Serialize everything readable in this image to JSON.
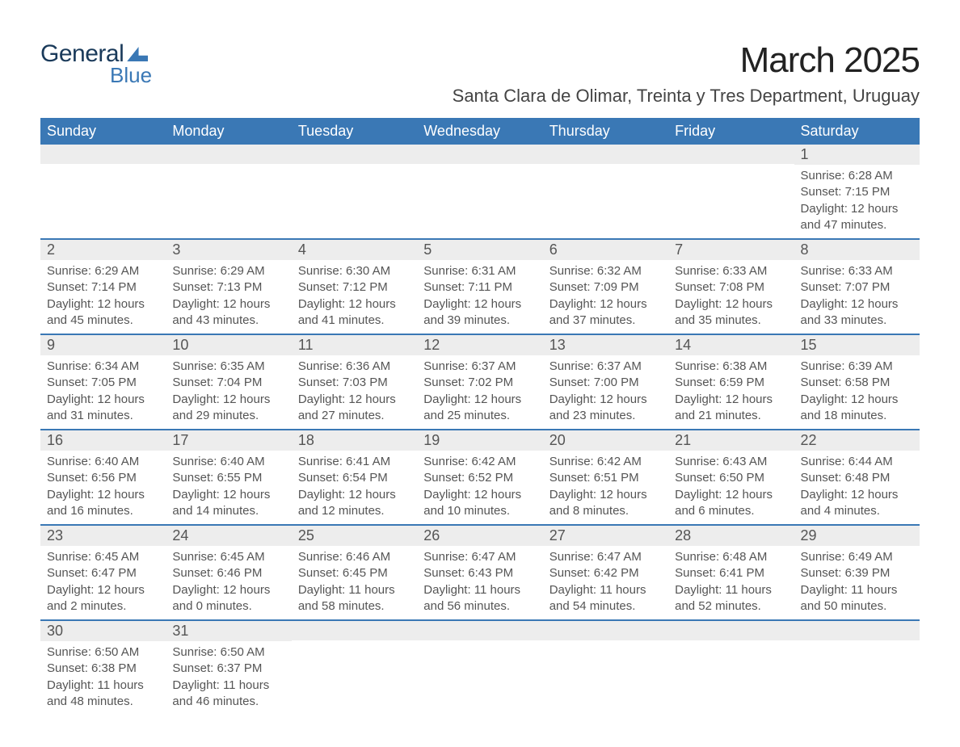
{
  "logo": {
    "word1": "General",
    "word2": "Blue"
  },
  "title": "March 2025",
  "location": "Santa Clara de Olimar, Treinta y Tres Department, Uruguay",
  "colors": {
    "header_bg": "#3a78b5",
    "header_fg": "#ffffff",
    "daynum_bg": "#ededed",
    "border": "#3a78b5",
    "text": "#555555",
    "logo_dark": "#1a3a5a",
    "logo_blue": "#3a78b5"
  },
  "font": {
    "family": "Arial",
    "title_size_pt": 33,
    "location_size_pt": 16,
    "header_size_pt": 13,
    "body_size_pt": 11
  },
  "week_header": [
    "Sunday",
    "Monday",
    "Tuesday",
    "Wednesday",
    "Thursday",
    "Friday",
    "Saturday"
  ],
  "weeks": [
    [
      null,
      null,
      null,
      null,
      null,
      null,
      {
        "n": "1",
        "sunrise": "Sunrise: 6:28 AM",
        "sunset": "Sunset: 7:15 PM",
        "daylight": "Daylight: 12 hours and 47 minutes."
      }
    ],
    [
      {
        "n": "2",
        "sunrise": "Sunrise: 6:29 AM",
        "sunset": "Sunset: 7:14 PM",
        "daylight": "Daylight: 12 hours and 45 minutes."
      },
      {
        "n": "3",
        "sunrise": "Sunrise: 6:29 AM",
        "sunset": "Sunset: 7:13 PM",
        "daylight": "Daylight: 12 hours and 43 minutes."
      },
      {
        "n": "4",
        "sunrise": "Sunrise: 6:30 AM",
        "sunset": "Sunset: 7:12 PM",
        "daylight": "Daylight: 12 hours and 41 minutes."
      },
      {
        "n": "5",
        "sunrise": "Sunrise: 6:31 AM",
        "sunset": "Sunset: 7:11 PM",
        "daylight": "Daylight: 12 hours and 39 minutes."
      },
      {
        "n": "6",
        "sunrise": "Sunrise: 6:32 AM",
        "sunset": "Sunset: 7:09 PM",
        "daylight": "Daylight: 12 hours and 37 minutes."
      },
      {
        "n": "7",
        "sunrise": "Sunrise: 6:33 AM",
        "sunset": "Sunset: 7:08 PM",
        "daylight": "Daylight: 12 hours and 35 minutes."
      },
      {
        "n": "8",
        "sunrise": "Sunrise: 6:33 AM",
        "sunset": "Sunset: 7:07 PM",
        "daylight": "Daylight: 12 hours and 33 minutes."
      }
    ],
    [
      {
        "n": "9",
        "sunrise": "Sunrise: 6:34 AM",
        "sunset": "Sunset: 7:05 PM",
        "daylight": "Daylight: 12 hours and 31 minutes."
      },
      {
        "n": "10",
        "sunrise": "Sunrise: 6:35 AM",
        "sunset": "Sunset: 7:04 PM",
        "daylight": "Daylight: 12 hours and 29 minutes."
      },
      {
        "n": "11",
        "sunrise": "Sunrise: 6:36 AM",
        "sunset": "Sunset: 7:03 PM",
        "daylight": "Daylight: 12 hours and 27 minutes."
      },
      {
        "n": "12",
        "sunrise": "Sunrise: 6:37 AM",
        "sunset": "Sunset: 7:02 PM",
        "daylight": "Daylight: 12 hours and 25 minutes."
      },
      {
        "n": "13",
        "sunrise": "Sunrise: 6:37 AM",
        "sunset": "Sunset: 7:00 PM",
        "daylight": "Daylight: 12 hours and 23 minutes."
      },
      {
        "n": "14",
        "sunrise": "Sunrise: 6:38 AM",
        "sunset": "Sunset: 6:59 PM",
        "daylight": "Daylight: 12 hours and 21 minutes."
      },
      {
        "n": "15",
        "sunrise": "Sunrise: 6:39 AM",
        "sunset": "Sunset: 6:58 PM",
        "daylight": "Daylight: 12 hours and 18 minutes."
      }
    ],
    [
      {
        "n": "16",
        "sunrise": "Sunrise: 6:40 AM",
        "sunset": "Sunset: 6:56 PM",
        "daylight": "Daylight: 12 hours and 16 minutes."
      },
      {
        "n": "17",
        "sunrise": "Sunrise: 6:40 AM",
        "sunset": "Sunset: 6:55 PM",
        "daylight": "Daylight: 12 hours and 14 minutes."
      },
      {
        "n": "18",
        "sunrise": "Sunrise: 6:41 AM",
        "sunset": "Sunset: 6:54 PM",
        "daylight": "Daylight: 12 hours and 12 minutes."
      },
      {
        "n": "19",
        "sunrise": "Sunrise: 6:42 AM",
        "sunset": "Sunset: 6:52 PM",
        "daylight": "Daylight: 12 hours and 10 minutes."
      },
      {
        "n": "20",
        "sunrise": "Sunrise: 6:42 AM",
        "sunset": "Sunset: 6:51 PM",
        "daylight": "Daylight: 12 hours and 8 minutes."
      },
      {
        "n": "21",
        "sunrise": "Sunrise: 6:43 AM",
        "sunset": "Sunset: 6:50 PM",
        "daylight": "Daylight: 12 hours and 6 minutes."
      },
      {
        "n": "22",
        "sunrise": "Sunrise: 6:44 AM",
        "sunset": "Sunset: 6:48 PM",
        "daylight": "Daylight: 12 hours and 4 minutes."
      }
    ],
    [
      {
        "n": "23",
        "sunrise": "Sunrise: 6:45 AM",
        "sunset": "Sunset: 6:47 PM",
        "daylight": "Daylight: 12 hours and 2 minutes."
      },
      {
        "n": "24",
        "sunrise": "Sunrise: 6:45 AM",
        "sunset": "Sunset: 6:46 PM",
        "daylight": "Daylight: 12 hours and 0 minutes."
      },
      {
        "n": "25",
        "sunrise": "Sunrise: 6:46 AM",
        "sunset": "Sunset: 6:45 PM",
        "daylight": "Daylight: 11 hours and 58 minutes."
      },
      {
        "n": "26",
        "sunrise": "Sunrise: 6:47 AM",
        "sunset": "Sunset: 6:43 PM",
        "daylight": "Daylight: 11 hours and 56 minutes."
      },
      {
        "n": "27",
        "sunrise": "Sunrise: 6:47 AM",
        "sunset": "Sunset: 6:42 PM",
        "daylight": "Daylight: 11 hours and 54 minutes."
      },
      {
        "n": "28",
        "sunrise": "Sunrise: 6:48 AM",
        "sunset": "Sunset: 6:41 PM",
        "daylight": "Daylight: 11 hours and 52 minutes."
      },
      {
        "n": "29",
        "sunrise": "Sunrise: 6:49 AM",
        "sunset": "Sunset: 6:39 PM",
        "daylight": "Daylight: 11 hours and 50 minutes."
      }
    ],
    [
      {
        "n": "30",
        "sunrise": "Sunrise: 6:50 AM",
        "sunset": "Sunset: 6:38 PM",
        "daylight": "Daylight: 11 hours and 48 minutes."
      },
      {
        "n": "31",
        "sunrise": "Sunrise: 6:50 AM",
        "sunset": "Sunset: 6:37 PM",
        "daylight": "Daylight: 11 hours and 46 minutes."
      },
      null,
      null,
      null,
      null,
      null
    ]
  ]
}
